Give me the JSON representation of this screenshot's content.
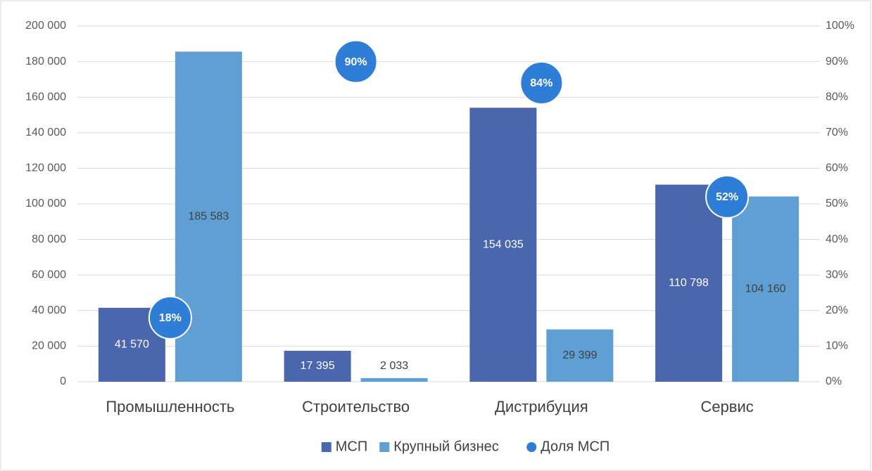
{
  "chart_data": {
    "type": "bar",
    "categories": [
      "Промышленность",
      "Строительство",
      "Дистрибуция",
      "Сервис"
    ],
    "series": [
      {
        "name": "МСП",
        "color": "#4a66ac",
        "values": [
          41570,
          17395,
          154035,
          110798
        ],
        "value_labels": [
          "41 570",
          "17 395",
          "154 035",
          "110 798"
        ]
      },
      {
        "name": "Крупный бизнес",
        "color": "#5f9fd4",
        "values": [
          185583,
          2033,
          29399,
          104160
        ],
        "value_labels": [
          "185 583",
          "2 033",
          "29 399",
          "104 160"
        ]
      },
      {
        "name": "Доля МСП",
        "color": "#2e7dd6",
        "type": "scatter",
        "axis": "y2",
        "values": [
          18,
          90,
          84,
          52
        ],
        "value_labels": [
          "18%",
          "90%",
          "84%",
          "52%"
        ]
      }
    ],
    "ylim": [
      0,
      200000
    ],
    "yticks": [
      0,
      {
        "value": 20000,
        "label": "20 000"
      },
      {
        "value": 40000,
        "label": "40 000"
      },
      {
        "value": 60000,
        "label": "60 000"
      },
      {
        "value": 80000,
        "label": "80 000"
      },
      {
        "value": 100000,
        "label": "100 000"
      },
      {
        "value": 120000,
        "label": "120 000"
      },
      {
        "value": 140000,
        "label": "140 000"
      },
      {
        "value": 160000,
        "label": "160 000"
      },
      {
        "value": 180000,
        "label": "180 000"
      },
      {
        "value": 200000,
        "label": "200 000"
      }
    ],
    "y2lim": [
      0,
      100
    ],
    "y2ticks": [
      {
        "value": 0,
        "label": "0%"
      },
      {
        "value": 10,
        "label": "10%"
      },
      {
        "value": 20,
        "label": "20%"
      },
      {
        "value": 30,
        "label": "30%"
      },
      {
        "value": 40,
        "label": "40%"
      },
      {
        "value": 50,
        "label": "50%"
      },
      {
        "value": 60,
        "label": "60%"
      },
      {
        "value": 70,
        "label": "70%"
      },
      {
        "value": 80,
        "label": "80%"
      },
      {
        "value": 90,
        "label": "90%"
      },
      {
        "value": 100,
        "label": "100%"
      }
    ],
    "grid": true,
    "legend": "bottom"
  }
}
